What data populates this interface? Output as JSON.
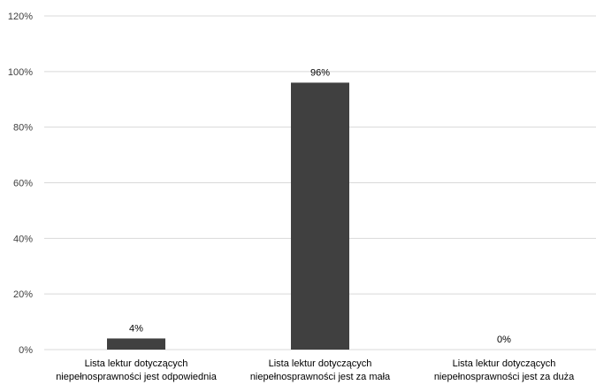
{
  "chart_data": {
    "type": "bar",
    "categories": [
      [
        "Lista lektur dotyczących",
        "niepełnosprawności jest odpowiednia"
      ],
      [
        "Lista lektur dotyczących",
        "niepełnosprawności jest za mała"
      ],
      [
        "Lista lektur dotyczących",
        "niepełnosprawności jest za duża"
      ]
    ],
    "values": [
      4,
      96,
      0
    ],
    "data_labels": [
      "4%",
      "96%",
      "0%"
    ],
    "yticks": [
      "0%",
      "20%",
      "40%",
      "60%",
      "80%",
      "100%",
      "120%"
    ],
    "ylim": [
      0,
      120
    ],
    "title": "",
    "xlabel": "",
    "ylabel": "",
    "grid": true,
    "legend": "none",
    "bar_color": "#404040",
    "grid_color": "#d9d9d9"
  }
}
